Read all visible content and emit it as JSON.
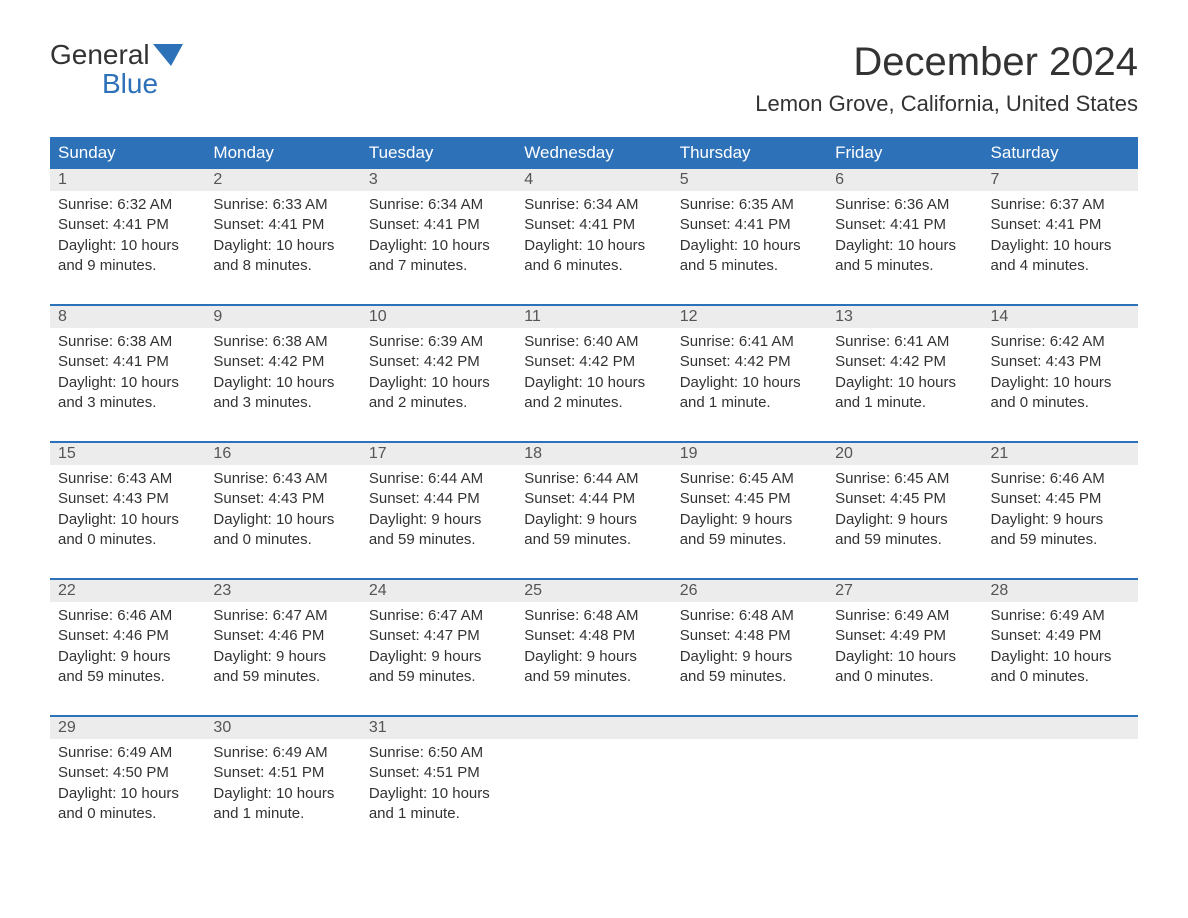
{
  "brand": {
    "word1": "General",
    "word2": "Blue",
    "accent_color": "#2d71b8"
  },
  "title": "December 2024",
  "location": "Lemon Grove, California, United States",
  "header_bg": "#2d71b8",
  "header_fg": "#ffffff",
  "daynum_bg": "#ececec",
  "weekdays": [
    "Sunday",
    "Monday",
    "Tuesday",
    "Wednesday",
    "Thursday",
    "Friday",
    "Saturday"
  ],
  "weeks": [
    [
      {
        "n": "1",
        "sunrise": "6:32 AM",
        "sunset": "4:41 PM",
        "daylight": "10 hours and 9 minutes."
      },
      {
        "n": "2",
        "sunrise": "6:33 AM",
        "sunset": "4:41 PM",
        "daylight": "10 hours and 8 minutes."
      },
      {
        "n": "3",
        "sunrise": "6:34 AM",
        "sunset": "4:41 PM",
        "daylight": "10 hours and 7 minutes."
      },
      {
        "n": "4",
        "sunrise": "6:34 AM",
        "sunset": "4:41 PM",
        "daylight": "10 hours and 6 minutes."
      },
      {
        "n": "5",
        "sunrise": "6:35 AM",
        "sunset": "4:41 PM",
        "daylight": "10 hours and 5 minutes."
      },
      {
        "n": "6",
        "sunrise": "6:36 AM",
        "sunset": "4:41 PM",
        "daylight": "10 hours and 5 minutes."
      },
      {
        "n": "7",
        "sunrise": "6:37 AM",
        "sunset": "4:41 PM",
        "daylight": "10 hours and 4 minutes."
      }
    ],
    [
      {
        "n": "8",
        "sunrise": "6:38 AM",
        "sunset": "4:41 PM",
        "daylight": "10 hours and 3 minutes."
      },
      {
        "n": "9",
        "sunrise": "6:38 AM",
        "sunset": "4:42 PM",
        "daylight": "10 hours and 3 minutes."
      },
      {
        "n": "10",
        "sunrise": "6:39 AM",
        "sunset": "4:42 PM",
        "daylight": "10 hours and 2 minutes."
      },
      {
        "n": "11",
        "sunrise": "6:40 AM",
        "sunset": "4:42 PM",
        "daylight": "10 hours and 2 minutes."
      },
      {
        "n": "12",
        "sunrise": "6:41 AM",
        "sunset": "4:42 PM",
        "daylight": "10 hours and 1 minute."
      },
      {
        "n": "13",
        "sunrise": "6:41 AM",
        "sunset": "4:42 PM",
        "daylight": "10 hours and 1 minute."
      },
      {
        "n": "14",
        "sunrise": "6:42 AM",
        "sunset": "4:43 PM",
        "daylight": "10 hours and 0 minutes."
      }
    ],
    [
      {
        "n": "15",
        "sunrise": "6:43 AM",
        "sunset": "4:43 PM",
        "daylight": "10 hours and 0 minutes."
      },
      {
        "n": "16",
        "sunrise": "6:43 AM",
        "sunset": "4:43 PM",
        "daylight": "10 hours and 0 minutes."
      },
      {
        "n": "17",
        "sunrise": "6:44 AM",
        "sunset": "4:44 PM",
        "daylight": "9 hours and 59 minutes."
      },
      {
        "n": "18",
        "sunrise": "6:44 AM",
        "sunset": "4:44 PM",
        "daylight": "9 hours and 59 minutes."
      },
      {
        "n": "19",
        "sunrise": "6:45 AM",
        "sunset": "4:45 PM",
        "daylight": "9 hours and 59 minutes."
      },
      {
        "n": "20",
        "sunrise": "6:45 AM",
        "sunset": "4:45 PM",
        "daylight": "9 hours and 59 minutes."
      },
      {
        "n": "21",
        "sunrise": "6:46 AM",
        "sunset": "4:45 PM",
        "daylight": "9 hours and 59 minutes."
      }
    ],
    [
      {
        "n": "22",
        "sunrise": "6:46 AM",
        "sunset": "4:46 PM",
        "daylight": "9 hours and 59 minutes."
      },
      {
        "n": "23",
        "sunrise": "6:47 AM",
        "sunset": "4:46 PM",
        "daylight": "9 hours and 59 minutes."
      },
      {
        "n": "24",
        "sunrise": "6:47 AM",
        "sunset": "4:47 PM",
        "daylight": "9 hours and 59 minutes."
      },
      {
        "n": "25",
        "sunrise": "6:48 AM",
        "sunset": "4:48 PM",
        "daylight": "9 hours and 59 minutes."
      },
      {
        "n": "26",
        "sunrise": "6:48 AM",
        "sunset": "4:48 PM",
        "daylight": "9 hours and 59 minutes."
      },
      {
        "n": "27",
        "sunrise": "6:49 AM",
        "sunset": "4:49 PM",
        "daylight": "10 hours and 0 minutes."
      },
      {
        "n": "28",
        "sunrise": "6:49 AM",
        "sunset": "4:49 PM",
        "daylight": "10 hours and 0 minutes."
      }
    ],
    [
      {
        "n": "29",
        "sunrise": "6:49 AM",
        "sunset": "4:50 PM",
        "daylight": "10 hours and 0 minutes."
      },
      {
        "n": "30",
        "sunrise": "6:49 AM",
        "sunset": "4:51 PM",
        "daylight": "10 hours and 1 minute."
      },
      {
        "n": "31",
        "sunrise": "6:50 AM",
        "sunset": "4:51 PM",
        "daylight": "10 hours and 1 minute."
      },
      null,
      null,
      null,
      null
    ]
  ],
  "labels": {
    "sunrise": "Sunrise:",
    "sunset": "Sunset:",
    "daylight": "Daylight:"
  }
}
